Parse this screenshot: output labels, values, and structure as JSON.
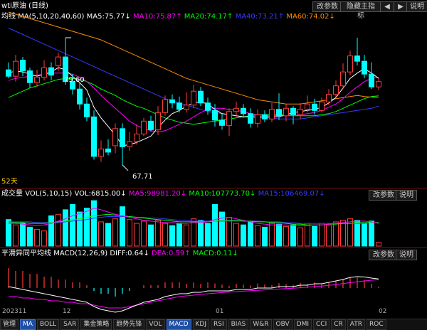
{
  "window": {
    "title": "wti原油 (日线)",
    "buttons": {
      "params": "改参数",
      "hide_indicator": "隐藏主指标",
      "help": "说明"
    },
    "nav_left": "◀",
    "nav_right": "▶"
  },
  "main_panel": {
    "indicator_label": "均线",
    "ma_params": "MA(5,10,20,40,60)",
    "ma5": "MA5:75.77↓",
    "ma10": "MA10:75.87↑",
    "ma20": "MA20:74.17↑",
    "ma40": "MA40:73.21↑",
    "ma60": "MA60:74.02↓",
    "high_label": "79.60",
    "low_label": "67.71",
    "days_label": "52天"
  },
  "volume_panel": {
    "label": "成交量",
    "params": "VOL(5,10,15)",
    "vol": "VOL:6815.00↓",
    "ma5": "MA5:98981.20↓",
    "ma10": "MA10:107773.70↓",
    "ma15": "MA15:106469.07↓",
    "btn_params": "改参数",
    "btn_help": "说明"
  },
  "macd_panel": {
    "label": "平滑异同平均线",
    "params": "MACD(12,26,9)",
    "diff": "DIFF:0.64↓",
    "dea": "DEA:0.59↑",
    "macd": "MACD:0.11↓",
    "btn_params": "改参数",
    "btn_help": "说明"
  },
  "time_axis": {
    "t1": "202311",
    "t2": "12",
    "t3": "01",
    "t4": "02"
  },
  "bottom_tabs": [
    "管理",
    "MA",
    "BOLL",
    "SAR",
    "集金策略",
    "趋势先锋",
    "VOL",
    "MACD",
    "KDJ",
    "RSI",
    "BIAS",
    "W&R",
    "OBV",
    "DMI",
    "CCI",
    "CR",
    "ATR",
    "ROC"
  ],
  "bottom_active": [
    "MA",
    "MACD"
  ],
  "colors": {
    "up": "#ff3b3b",
    "down": "#00ffff",
    "ma5": "#ffffff",
    "ma10": "#ff00ff",
    "ma20": "#00ff00",
    "ma40": "#3a3aff",
    "ma60": "#ff8c00"
  },
  "chart_data": {
    "type": "candlestick",
    "candles": [
      {
        "o": 76.6,
        "c": 76.0,
        "h": 77.3,
        "l": 75.8,
        "vol": 0.35
      },
      {
        "o": 76.0,
        "c": 77.4,
        "h": 78.0,
        "l": 75.5,
        "vol": 0.28
      },
      {
        "o": 77.5,
        "c": 76.5,
        "h": 77.8,
        "l": 76.0,
        "vol": 0.3
      },
      {
        "o": 76.5,
        "c": 75.4,
        "h": 76.8,
        "l": 74.9,
        "vol": 0.25
      },
      {
        "o": 75.4,
        "c": 75.9,
        "h": 76.6,
        "l": 75.0,
        "vol": 0.22
      },
      {
        "o": 75.9,
        "c": 76.8,
        "h": 77.5,
        "l": 75.6,
        "vol": 0.2
      },
      {
        "o": 76.8,
        "c": 76.1,
        "h": 77.3,
        "l": 75.6,
        "vol": 0.4
      },
      {
        "o": 77.0,
        "c": 77.8,
        "h": 78.2,
        "l": 76.5,
        "vol": 0.42
      },
      {
        "o": 77.8,
        "c": 75.5,
        "h": 79.6,
        "l": 75.2,
        "vol": 0.48
      },
      {
        "o": 75.5,
        "c": 74.8,
        "h": 76.2,
        "l": 74.3,
        "vol": 0.55
      },
      {
        "o": 74.8,
        "c": 73.4,
        "h": 75.4,
        "l": 72.9,
        "vol": 0.45
      },
      {
        "o": 73.4,
        "c": 72.2,
        "h": 74.0,
        "l": 71.8,
        "vol": 0.5
      },
      {
        "o": 72.2,
        "c": 68.5,
        "h": 72.8,
        "l": 68.2,
        "vol": 0.6
      },
      {
        "o": 68.5,
        "c": 69.2,
        "h": 70.0,
        "l": 68.0,
        "vol": 0.32
      },
      {
        "o": 69.2,
        "c": 68.9,
        "h": 70.1,
        "l": 68.6,
        "vol": 0.3
      },
      {
        "o": 69.5,
        "c": 71.1,
        "h": 71.6,
        "l": 68.8,
        "vol": 0.36
      },
      {
        "o": 71.1,
        "c": 69.4,
        "h": 71.6,
        "l": 67.71,
        "vol": 0.52
      },
      {
        "o": 69.4,
        "c": 69.9,
        "h": 70.8,
        "l": 69.0,
        "vol": 0.35
      },
      {
        "o": 69.9,
        "c": 70.6,
        "h": 71.5,
        "l": 69.6,
        "vol": 0.3
      },
      {
        "o": 70.6,
        "c": 71.8,
        "h": 72.1,
        "l": 70.4,
        "vol": 0.33
      },
      {
        "o": 71.8,
        "c": 71.0,
        "h": 72.3,
        "l": 70.8,
        "vol": 0.28
      },
      {
        "o": 71.0,
        "c": 72.6,
        "h": 73.2,
        "l": 70.5,
        "vol": 0.34
      },
      {
        "o": 72.6,
        "c": 73.8,
        "h": 74.2,
        "l": 72.3,
        "vol": 0.3
      },
      {
        "o": 73.8,
        "c": 73.5,
        "h": 74.3,
        "l": 73.0,
        "vol": 0.27
      },
      {
        "o": 73.5,
        "c": 72.9,
        "h": 74.1,
        "l": 72.6,
        "vol": 0.3
      },
      {
        "o": 72.9,
        "c": 73.3,
        "h": 74.5,
        "l": 72.6,
        "vol": 0.28
      },
      {
        "o": 73.3,
        "c": 74.6,
        "h": 75.2,
        "l": 73.0,
        "vol": 0.36
      },
      {
        "o": 74.6,
        "c": 73.5,
        "h": 75.0,
        "l": 73.2,
        "vol": 0.34
      },
      {
        "o": 73.5,
        "c": 72.8,
        "h": 74.0,
        "l": 72.4,
        "vol": 0.3
      },
      {
        "o": 72.8,
        "c": 71.9,
        "h": 73.4,
        "l": 71.3,
        "vol": 0.55
      },
      {
        "o": 71.9,
        "c": 71.4,
        "h": 72.5,
        "l": 71.0,
        "vol": 0.45
      },
      {
        "o": 71.4,
        "c": 72.7,
        "h": 73.0,
        "l": 70.4,
        "vol": 0.38
      },
      {
        "o": 72.7,
        "c": 73.0,
        "h": 73.6,
        "l": 72.2,
        "vol": 0.3
      },
      {
        "o": 73.0,
        "c": 72.5,
        "h": 73.4,
        "l": 72.1,
        "vol": 0.28
      },
      {
        "o": 72.5,
        "c": 71.6,
        "h": 73.0,
        "l": 71.2,
        "vol": 0.32
      },
      {
        "o": 71.6,
        "c": 72.4,
        "h": 72.9,
        "l": 71.2,
        "vol": 0.27
      },
      {
        "o": 72.4,
        "c": 72.0,
        "h": 72.8,
        "l": 71.7,
        "vol": 0.25
      },
      {
        "o": 72.0,
        "c": 72.9,
        "h": 73.5,
        "l": 71.7,
        "vol": 0.3
      },
      {
        "o": 72.9,
        "c": 72.3,
        "h": 74.4,
        "l": 71.9,
        "vol": 0.29
      },
      {
        "o": 72.3,
        "c": 73.0,
        "h": 73.4,
        "l": 71.8,
        "vol": 0.26
      },
      {
        "o": 73.0,
        "c": 72.4,
        "h": 73.2,
        "l": 71.5,
        "vol": 0.28
      },
      {
        "o": 72.4,
        "c": 72.9,
        "h": 73.5,
        "l": 72.0,
        "vol": 0.24
      },
      {
        "o": 72.9,
        "c": 73.4,
        "h": 74.2,
        "l": 72.6,
        "vol": 0.3
      },
      {
        "o": 73.4,
        "c": 72.8,
        "h": 73.9,
        "l": 72.4,
        "vol": 0.26
      },
      {
        "o": 72.8,
        "c": 73.6,
        "h": 74.0,
        "l": 72.6,
        "vol": 0.3
      },
      {
        "o": 73.6,
        "c": 74.3,
        "h": 74.8,
        "l": 73.3,
        "vol": 0.28
      },
      {
        "o": 74.3,
        "c": 75.1,
        "h": 75.6,
        "l": 74.0,
        "vol": 0.32
      },
      {
        "o": 75.1,
        "c": 76.4,
        "h": 77.2,
        "l": 74.8,
        "vol": 0.34
      },
      {
        "o": 76.4,
        "c": 77.9,
        "h": 78.4,
        "l": 76.1,
        "vol": 0.36
      },
      {
        "o": 77.9,
        "c": 77.4,
        "h": 79.6,
        "l": 77.0,
        "vol": 0.34
      },
      {
        "o": 77.4,
        "c": 76.2,
        "h": 78.0,
        "l": 75.8,
        "vol": 0.3
      },
      {
        "o": 76.2,
        "c": 75.0,
        "h": 77.3,
        "l": 74.8,
        "vol": 0.33
      },
      {
        "o": 75.0,
        "c": 75.5,
        "h": 75.8,
        "l": 74.7,
        "vol": 0.05
      }
    ],
    "ma_series": {
      "ma5": [
        76.3,
        76.5,
        76.4,
        76.2,
        76.0,
        76.2,
        76.4,
        76.8,
        76.6,
        76.0,
        75.4,
        74.7,
        73.1,
        72.1,
        71.3,
        70.5,
        69.5,
        69.6,
        69.8,
        70.1,
        70.4,
        71.2,
        71.9,
        72.5,
        72.8,
        73.2,
        73.5,
        73.6,
        73.4,
        72.9,
        72.5,
        72.4,
        72.3,
        72.2,
        72.2,
        72.2,
        72.2,
        72.2,
        72.2,
        72.4,
        72.6,
        72.7,
        72.8,
        72.9,
        73.1,
        73.5,
        74.0,
        74.9,
        75.8,
        76.3,
        76.7,
        76.3,
        75.8
      ],
      "ma10": [
        75.6,
        75.8,
        75.9,
        76.0,
        76.1,
        76.2,
        76.3,
        76.3,
        76.3,
        76.2,
        75.9,
        75.5,
        74.9,
        74.2,
        73.6,
        73.0,
        72.4,
        71.8,
        71.4,
        71.1,
        70.9,
        70.8,
        70.9,
        71.2,
        71.5,
        71.8,
        72.2,
        72.6,
        72.9,
        73.0,
        73.0,
        72.9,
        72.8,
        72.7,
        72.5,
        72.4,
        72.3,
        72.3,
        72.3,
        72.3,
        72.3,
        72.4,
        72.5,
        72.6,
        72.8,
        73.1,
        73.4,
        73.9,
        74.5,
        75.0,
        75.5,
        75.8,
        75.87
      ],
      "ma20": [
        74.0,
        74.3,
        74.6,
        74.9,
        75.1,
        75.3,
        75.5,
        75.7,
        75.8,
        75.8,
        75.7,
        75.5,
        75.2,
        74.8,
        74.5,
        74.2,
        73.8,
        73.5,
        73.2,
        73.0,
        72.7,
        72.4,
        72.1,
        71.9,
        71.7,
        71.6,
        71.5,
        71.6,
        71.7,
        71.8,
        71.9,
        72.0,
        72.1,
        72.2,
        72.3,
        72.4,
        72.4,
        72.4,
        72.4,
        72.4,
        72.3,
        72.3,
        72.3,
        72.3,
        72.4,
        72.5,
        72.7,
        73.0,
        73.3,
        73.6,
        73.9,
        74.1,
        74.17
      ],
      "ma40": [
        80.5,
        80.2,
        79.9,
        79.6,
        79.3,
        79.0,
        78.7,
        78.4,
        78.1,
        77.8,
        77.5,
        77.2,
        76.9,
        76.6,
        76.3,
        76.0,
        75.7,
        75.4,
        75.1,
        74.8,
        74.5,
        74.2,
        73.9,
        73.7,
        73.5,
        73.3,
        73.1,
        72.9,
        72.7,
        72.6,
        72.5,
        72.4,
        72.3,
        72.2,
        72.2,
        72.1,
        72.1,
        72.1,
        72.0,
        72.0,
        72.0,
        72.0,
        72.1,
        72.2,
        72.3,
        72.4,
        72.5,
        72.6,
        72.7,
        72.8,
        72.9,
        73.0,
        73.21
      ],
      "ma60": [
        82.0,
        81.8,
        81.6,
        81.4,
        81.2,
        81.0,
        80.8,
        80.6,
        80.4,
        80.2,
        80.0,
        79.8,
        79.6,
        79.4,
        79.1,
        78.8,
        78.5,
        78.2,
        77.9,
        77.6,
        77.3,
        77.0,
        76.7,
        76.4,
        76.1,
        75.8,
        75.6,
        75.4,
        75.2,
        75.0,
        74.8,
        74.6,
        74.4,
        74.2,
        74.0,
        73.8,
        73.7,
        73.6,
        73.5,
        73.4,
        73.4,
        73.4,
        73.5,
        73.6,
        73.7,
        73.8,
        73.9,
        74.0,
        74.1,
        74.2,
        74.1,
        74.05,
        74.02
      ]
    },
    "macd": {
      "diff": [
        0.1,
        0.0,
        -0.1,
        -0.2,
        -0.3,
        -0.4,
        -0.5,
        -0.6,
        -0.7,
        -0.8,
        -0.9,
        -1.0,
        -1.3,
        -1.5,
        -1.6,
        -1.7,
        -1.6,
        -1.4,
        -1.2,
        -1.0,
        -0.9,
        -0.8,
        -0.6,
        -0.5,
        -0.4,
        -0.4,
        -0.3,
        -0.3,
        -0.2,
        -0.2,
        -0.2,
        -0.2,
        -0.1,
        -0.1,
        -0.1,
        0.0,
        0.0,
        0.0,
        0.1,
        0.1,
        0.1,
        0.2,
        0.2,
        0.3,
        0.3,
        0.4,
        0.5,
        0.6,
        0.75,
        0.8,
        0.78,
        0.7,
        0.64
      ],
      "dea": [
        -0.6,
        -0.6,
        -0.7,
        -0.7,
        -0.8,
        -0.8,
        -0.9,
        -0.9,
        -1.0,
        -1.0,
        -1.1,
        -1.1,
        -1.2,
        -1.3,
        -1.4,
        -1.4,
        -1.4,
        -1.3,
        -1.2,
        -1.1,
        -1.0,
        -0.9,
        -0.8,
        -0.7,
        -0.6,
        -0.55,
        -0.5,
        -0.45,
        -0.4,
        -0.36,
        -0.32,
        -0.28,
        -0.25,
        -0.22,
        -0.19,
        -0.16,
        -0.13,
        -0.1,
        -0.07,
        -0.04,
        -0.01,
        0.02,
        0.06,
        0.1,
        0.14,
        0.19,
        0.25,
        0.31,
        0.38,
        0.44,
        0.5,
        0.55,
        0.59
      ]
    },
    "volume_ma": {
      "ma5": [
        0.3,
        0.3,
        0.29,
        0.28,
        0.27,
        0.28,
        0.3,
        0.33,
        0.36,
        0.4,
        0.43,
        0.46,
        0.5,
        0.48,
        0.45,
        0.42,
        0.4,
        0.38,
        0.36,
        0.34,
        0.33,
        0.32,
        0.31,
        0.31,
        0.3,
        0.3,
        0.31,
        0.31,
        0.32,
        0.35,
        0.37,
        0.38,
        0.36,
        0.34,
        0.32,
        0.3,
        0.29,
        0.28,
        0.28,
        0.28,
        0.27,
        0.27,
        0.27,
        0.28,
        0.28,
        0.29,
        0.3,
        0.31,
        0.32,
        0.33,
        0.33,
        0.32,
        0.3
      ],
      "ma10": [
        0.31,
        0.31,
        0.31,
        0.3,
        0.3,
        0.3,
        0.31,
        0.32,
        0.33,
        0.35,
        0.36,
        0.38,
        0.4,
        0.41,
        0.42,
        0.41,
        0.4,
        0.39,
        0.38,
        0.37,
        0.36,
        0.35,
        0.34,
        0.33,
        0.32,
        0.32,
        0.32,
        0.32,
        0.32,
        0.33,
        0.34,
        0.34,
        0.34,
        0.33,
        0.33,
        0.32,
        0.32,
        0.31,
        0.31,
        0.3,
        0.29,
        0.29,
        0.28,
        0.28,
        0.28,
        0.29,
        0.29,
        0.3,
        0.3,
        0.31,
        0.31,
        0.31,
        0.31
      ],
      "ma15": [
        0.32,
        0.32,
        0.32,
        0.32,
        0.31,
        0.31,
        0.31,
        0.31,
        0.32,
        0.33,
        0.34,
        0.35,
        0.37,
        0.38,
        0.39,
        0.39,
        0.39,
        0.39,
        0.38,
        0.38,
        0.37,
        0.37,
        0.36,
        0.35,
        0.34,
        0.34,
        0.33,
        0.33,
        0.33,
        0.33,
        0.33,
        0.33,
        0.33,
        0.33,
        0.33,
        0.33,
        0.32,
        0.32,
        0.32,
        0.31,
        0.31,
        0.3,
        0.3,
        0.3,
        0.3,
        0.3,
        0.3,
        0.3,
        0.3,
        0.3,
        0.3,
        0.31,
        0.31
      ]
    }
  }
}
